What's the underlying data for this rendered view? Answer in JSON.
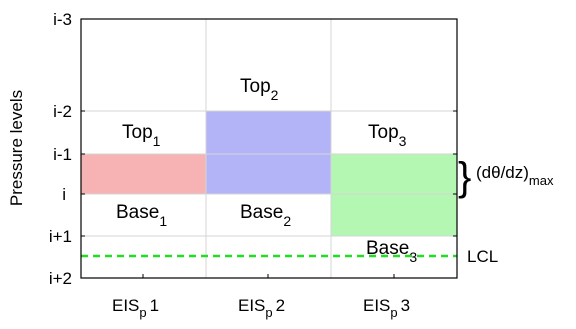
{
  "y_axis": {
    "label": "Pressure levels",
    "ticks": [
      "i-3",
      "i-2",
      "i-1",
      "i",
      "i+1",
      "i+2"
    ]
  },
  "columns": [
    {
      "label_main": "EIS",
      "label_sub": "p",
      "label_suffix": "1",
      "top_label": "Top",
      "top_sub": "1",
      "base_label": "Base",
      "base_sub": "1",
      "fill_color": "#f7b3b3",
      "layer_top": "i-1",
      "layer_base": "i"
    },
    {
      "label_main": "EIS",
      "label_sub": "p",
      "label_suffix": "2",
      "top_label": "Top",
      "top_sub": "2",
      "base_label": "Base",
      "base_sub": "2",
      "fill_color": "#b3b3f7",
      "layer_top": "i-2",
      "layer_base": "i"
    },
    {
      "label_main": "EIS",
      "label_sub": "p",
      "label_suffix": "3",
      "top_label": "Top",
      "top_sub": "3",
      "base_label": "Base",
      "base_sub": "3",
      "fill_color": "#b3f7b3",
      "layer_top": "i-1",
      "layer_base": "i+1"
    }
  ],
  "lcl": {
    "label": "LCL",
    "level": "i+1.5",
    "color": "#22dd22"
  },
  "annotation": {
    "brace": "}",
    "text": "(dθ/dz)",
    "sub": "max"
  },
  "colors": {
    "grid": "#d6d6d6",
    "frame": "#000000"
  }
}
